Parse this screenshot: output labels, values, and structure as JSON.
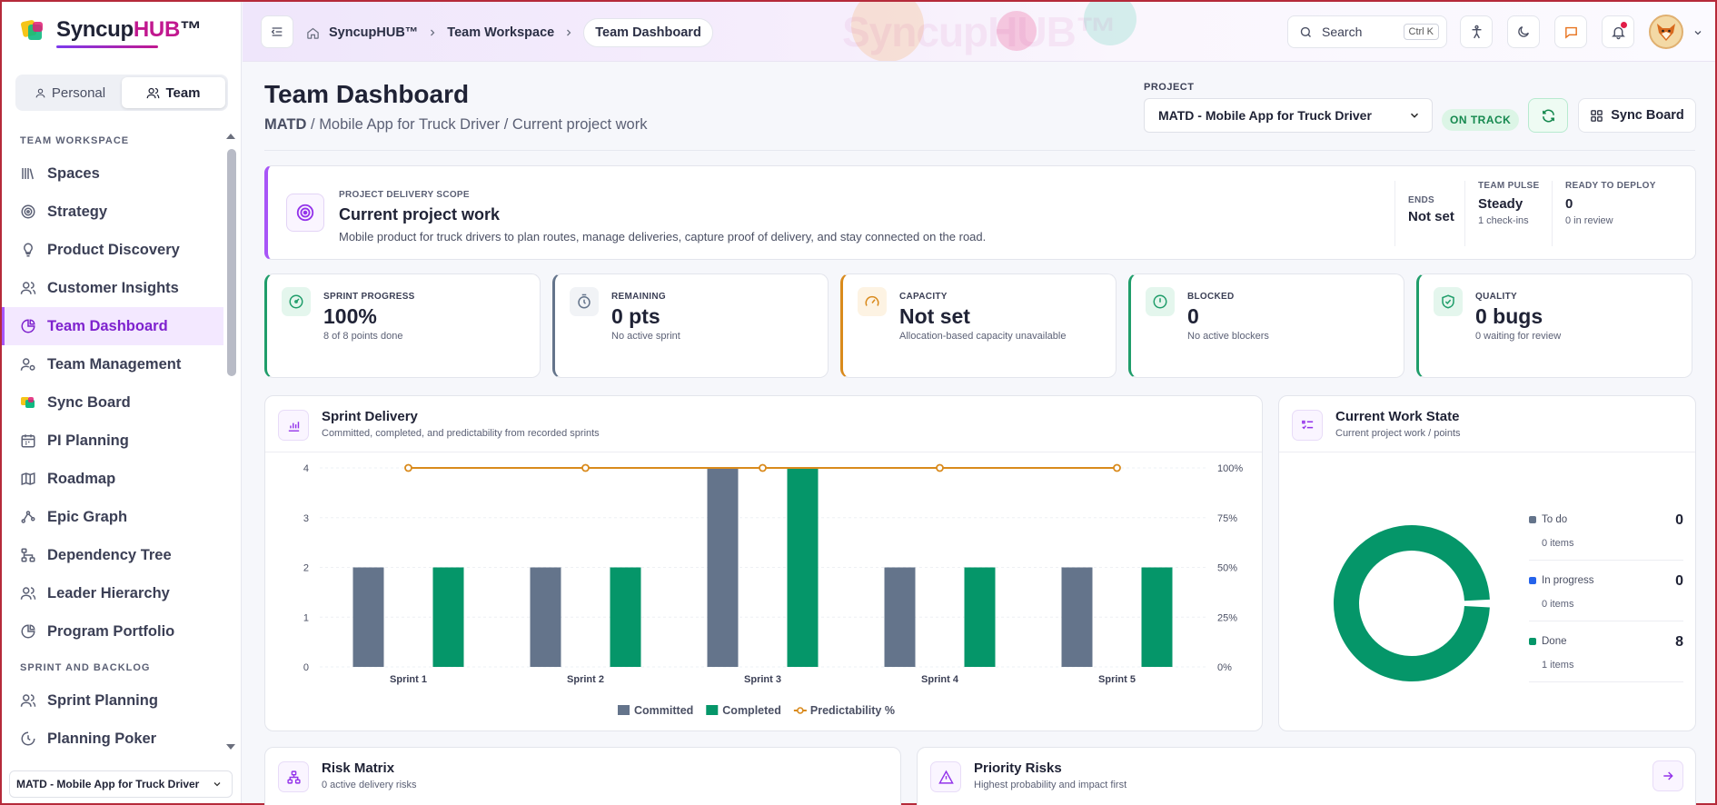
{
  "app": {
    "name_prefix": "Syncup",
    "name_hub": "HUB",
    "name_tm": "™"
  },
  "sidebar": {
    "mode": {
      "personal": "Personal",
      "team": "Team"
    },
    "sections": [
      {
        "label": "TEAM WORKSPACE",
        "items": [
          {
            "label": "Spaces",
            "icon": "library-icon"
          },
          {
            "label": "Strategy",
            "icon": "target-icon"
          },
          {
            "label": "Product Discovery",
            "icon": "lightbulb-icon"
          },
          {
            "label": "Customer Insights",
            "icon": "users-icon"
          },
          {
            "label": "Team Dashboard",
            "icon": "pie-chart-icon",
            "active": true
          },
          {
            "label": "Team Management",
            "icon": "user-cog-icon"
          },
          {
            "label": "Sync Board",
            "icon": "sync-board-logo-icon"
          },
          {
            "label": "PI Planning",
            "icon": "calendar-icon"
          },
          {
            "label": "Roadmap",
            "icon": "map-icon"
          },
          {
            "label": "Epic Graph",
            "icon": "graph-icon"
          },
          {
            "label": "Dependency Tree",
            "icon": "tree-icon"
          },
          {
            "label": "Leader Hierarchy",
            "icon": "hierarchy-icon"
          },
          {
            "label": "Program Portfolio",
            "icon": "pie-chart-icon"
          }
        ]
      },
      {
        "label": "SPRINT AND BACKLOG",
        "items": [
          {
            "label": "Sprint Planning",
            "icon": "users-icon"
          },
          {
            "label": "Planning Poker",
            "icon": "poker-icon"
          }
        ]
      }
    ],
    "project_select": "MATD - Mobile App for Truck Driver"
  },
  "topbar": {
    "breadcrumbs": [
      "SyncupHUB™",
      "Team Workspace",
      "Team Dashboard"
    ],
    "search_label": "Search",
    "search_shortcut": "Ctrl K"
  },
  "page": {
    "title": "Team Dashboard",
    "crumb_code": "MATD",
    "crumb_rest": " / Mobile App for Truck Driver / Current project work",
    "project_label": "PROJECT",
    "project_value": "MATD - Mobile App for Truck Driver",
    "status": "ON TRACK",
    "sync_board_label": "Sync Board"
  },
  "scope": {
    "label": "PROJECT DELIVERY SCOPE",
    "title": "Current project work",
    "description": "Mobile product for truck drivers to plan routes, manage deliveries, capture proof of delivery, and stay connected on the road.",
    "meta": [
      {
        "label": "ENDS",
        "value": "Not set",
        "sub": ""
      },
      {
        "label": "TEAM PULSE",
        "value": "Steady",
        "sub": "1 check-ins"
      },
      {
        "label": "READY TO DEPLOY",
        "value": "0",
        "sub": "0 in review"
      }
    ]
  },
  "kpis": [
    {
      "label": "SPRINT PROGRESS",
      "value": "100%",
      "sub": "8 of 8 points done",
      "color": "#1f9d6a",
      "icon": "gauge-icon"
    },
    {
      "label": "REMAINING",
      "value": "0 pts",
      "sub": "No active sprint",
      "color": "#64748b",
      "icon": "timer-icon"
    },
    {
      "label": "CAPACITY",
      "value": "Not set",
      "sub": "Allocation-based capacity unavailable",
      "color": "#d98a1c",
      "icon": "speedometer-icon"
    },
    {
      "label": "BLOCKED",
      "value": "0",
      "sub": "No active blockers",
      "color": "#1f9d6a",
      "icon": "alert-circle-icon"
    },
    {
      "label": "QUALITY",
      "value": "0 bugs",
      "sub": "0 waiting for review",
      "color": "#1f9d6a",
      "icon": "shield-check-icon"
    }
  ],
  "sprint_delivery": {
    "title": "Sprint Delivery",
    "subtitle": "Committed, completed, and predictability from recorded sprints"
  },
  "chart_data": {
    "type": "bar",
    "categories": [
      "Sprint 1",
      "Sprint 2",
      "Sprint 3",
      "Sprint 4",
      "Sprint 5"
    ],
    "series": [
      {
        "name": "Committed",
        "values": [
          2,
          2,
          4,
          2,
          2
        ],
        "color": "#64748b"
      },
      {
        "name": "Completed",
        "values": [
          2,
          2,
          4,
          2,
          2
        ],
        "color": "#059669"
      },
      {
        "name": "Predictability %",
        "values": [
          100,
          100,
          100,
          100,
          100
        ],
        "color": "#d98a1c",
        "axis": "right",
        "type": "line"
      }
    ],
    "ylim": [
      0,
      4
    ],
    "yticks": [
      0,
      1,
      2,
      3,
      4
    ],
    "y2lim": [
      0,
      100
    ],
    "y2ticks": [
      "0%",
      "25%",
      "50%",
      "75%",
      "100%"
    ],
    "grid": true,
    "legend": "bottom"
  },
  "work_state": {
    "title": "Current Work State",
    "subtitle": "Current project work / points",
    "items": [
      {
        "label": "To do",
        "value": "0",
        "count": "0 items",
        "color": "#64748b"
      },
      {
        "label": "In progress",
        "value": "0",
        "count": "0 items",
        "color": "#2563eb"
      },
      {
        "label": "Done",
        "value": "8",
        "count": "1 items",
        "color": "#059669"
      }
    ]
  },
  "risk_matrix": {
    "title": "Risk Matrix",
    "subtitle": "0 active delivery risks"
  },
  "priority_risks": {
    "title": "Priority Risks",
    "subtitle": "Highest probability and impact first"
  }
}
